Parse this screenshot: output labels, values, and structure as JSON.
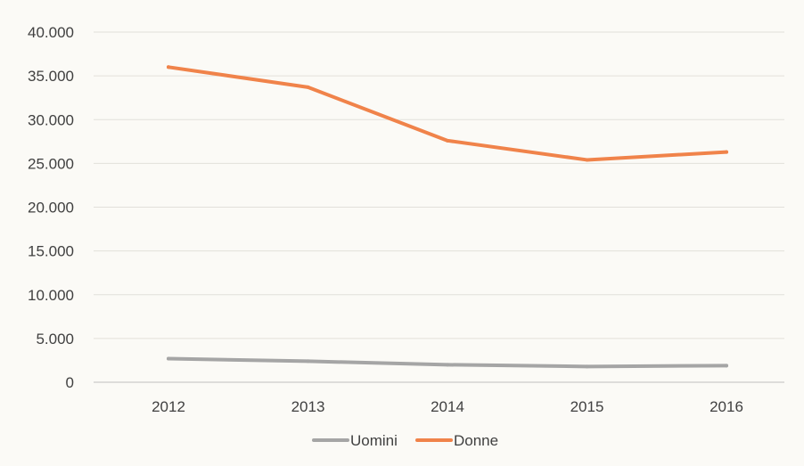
{
  "chart_data": {
    "type": "line",
    "title": "",
    "xlabel": "",
    "ylabel": "",
    "x": [
      "2012",
      "2013",
      "2014",
      "2015",
      "2016"
    ],
    "ylim": [
      0,
      40000
    ],
    "y_ticks": [
      "0",
      "5.000",
      "10.000",
      "15.000",
      "20.000",
      "25.000",
      "30.000",
      "35.000",
      "40.000"
    ],
    "grid": "horizontal",
    "legend_position": "bottom",
    "series": [
      {
        "name": "Uomini",
        "color": "#a5a5a5",
        "values": [
          2700,
          2400,
          2000,
          1800,
          1900
        ]
      },
      {
        "name": "Donne",
        "color": "#f0834a",
        "values": [
          36000,
          33700,
          27600,
          25400,
          26300
        ]
      }
    ]
  }
}
